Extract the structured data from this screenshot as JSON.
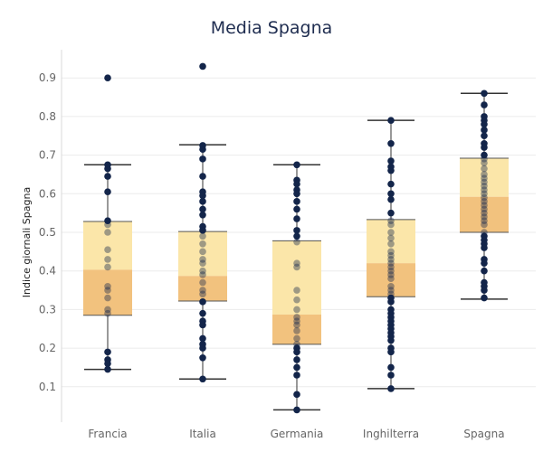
{
  "chart_data": {
    "type": "boxplot",
    "title": "Media Spagna",
    "ylabel": "Indice giornali Spagna",
    "xlabel": "",
    "ylim": [
      0.0,
      0.97
    ],
    "yticks": [
      0.1,
      0.2,
      0.3,
      0.4,
      0.5,
      0.6,
      0.7,
      0.8,
      0.9
    ],
    "categories": [
      "Francia",
      "Italia",
      "Germania",
      "Inghilterra",
      "Spagna"
    ],
    "boxes": [
      {
        "category": "Francia",
        "whisker_low": 0.145,
        "q1": 0.285,
        "median": 0.403,
        "q3": 0.528,
        "whisker_high": 0.675
      },
      {
        "category": "Italia",
        "whisker_low": 0.12,
        "q1": 0.322,
        "median": 0.387,
        "q3": 0.502,
        "whisker_high": 0.727
      },
      {
        "category": "Germania",
        "whisker_low": 0.04,
        "q1": 0.21,
        "median": 0.287,
        "q3": 0.478,
        "whisker_high": 0.675
      },
      {
        "category": "Inghilterra",
        "whisker_low": 0.095,
        "q1": 0.333,
        "median": 0.42,
        "q3": 0.533,
        "whisker_high": 0.79
      },
      {
        "category": "Spagna",
        "whisker_low": 0.327,
        "q1": 0.5,
        "median": 0.592,
        "q3": 0.692,
        "whisker_high": 0.86
      }
    ],
    "points": {
      "Francia": [
        0.9,
        0.675,
        0.665,
        0.645,
        0.605,
        0.53,
        0.52,
        0.5,
        0.455,
        0.43,
        0.41,
        0.36,
        0.35,
        0.33,
        0.3,
        0.29,
        0.19,
        0.17,
        0.16,
        0.145
      ],
      "Italia": [
        0.93,
        0.725,
        0.715,
        0.69,
        0.645,
        0.605,
        0.595,
        0.58,
        0.56,
        0.545,
        0.515,
        0.505,
        0.49,
        0.47,
        0.45,
        0.43,
        0.42,
        0.4,
        0.39,
        0.37,
        0.35,
        0.34,
        0.32,
        0.29,
        0.27,
        0.26,
        0.225,
        0.21,
        0.2,
        0.175,
        0.12
      ],
      "Germania": [
        0.675,
        0.635,
        0.625,
        0.61,
        0.6,
        0.58,
        0.56,
        0.535,
        0.505,
        0.49,
        0.475,
        0.42,
        0.41,
        0.35,
        0.325,
        0.3,
        0.28,
        0.27,
        0.26,
        0.245,
        0.225,
        0.21,
        0.2,
        0.19,
        0.17,
        0.15,
        0.13,
        0.08,
        0.04
      ],
      "Inghilterra": [
        0.79,
        0.73,
        0.685,
        0.67,
        0.66,
        0.625,
        0.6,
        0.585,
        0.55,
        0.53,
        0.52,
        0.5,
        0.485,
        0.47,
        0.45,
        0.44,
        0.43,
        0.42,
        0.41,
        0.4,
        0.39,
        0.38,
        0.36,
        0.35,
        0.34,
        0.33,
        0.32,
        0.3,
        0.29,
        0.28,
        0.27,
        0.26,
        0.25,
        0.24,
        0.23,
        0.22,
        0.2,
        0.19,
        0.15,
        0.13,
        0.095
      ],
      "Spagna": [
        0.86,
        0.83,
        0.8,
        0.79,
        0.78,
        0.765,
        0.75,
        0.73,
        0.72,
        0.7,
        0.69,
        0.68,
        0.665,
        0.65,
        0.64,
        0.63,
        0.62,
        0.61,
        0.6,
        0.59,
        0.58,
        0.57,
        0.56,
        0.55,
        0.54,
        0.53,
        0.52,
        0.5,
        0.49,
        0.48,
        0.47,
        0.46,
        0.43,
        0.42,
        0.4,
        0.37,
        0.36,
        0.35,
        0.33
      ]
    },
    "grid": true,
    "legend": "none"
  },
  "colors": {
    "box_upper": "#fbe6a9",
    "box_lower": "#f2c27e",
    "whisker": "#333333",
    "point": "#13254a",
    "title": "#1f2d50",
    "grid": "#ebebeb"
  }
}
